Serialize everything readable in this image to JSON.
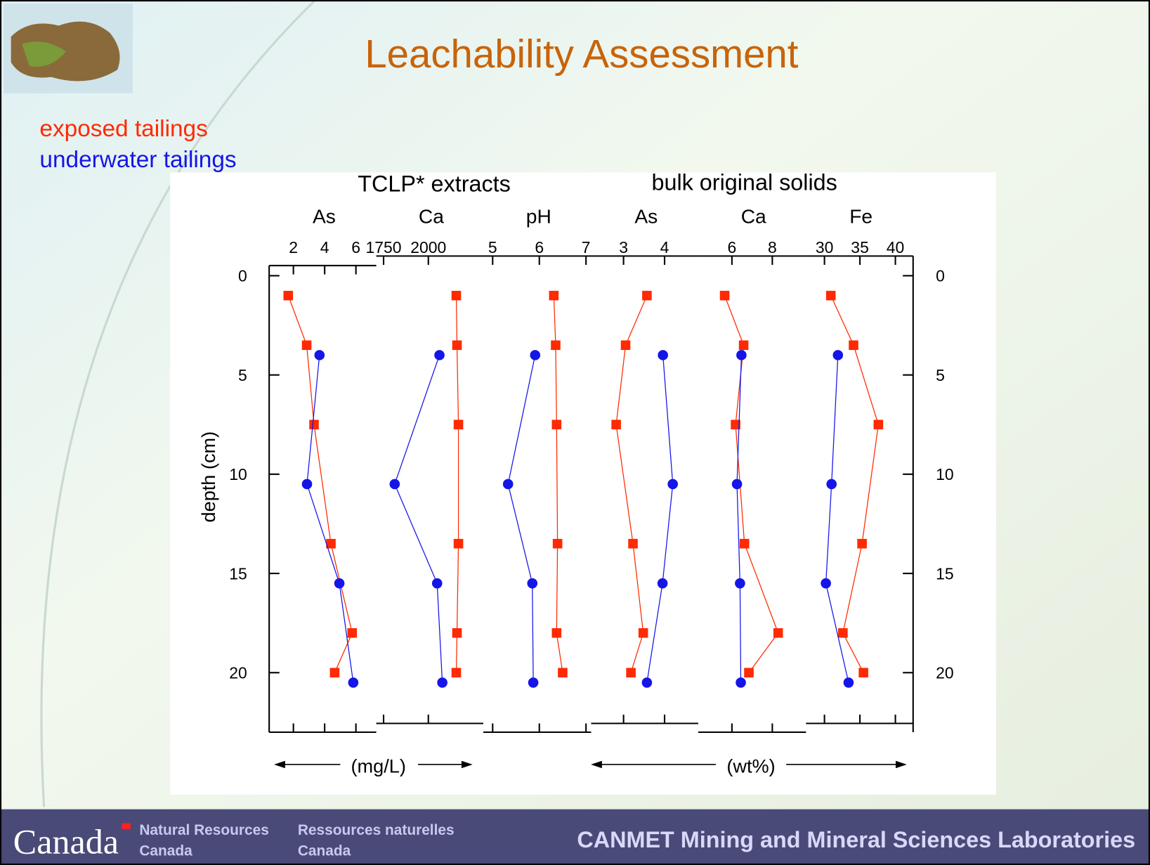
{
  "slide_title": "Leachability Assessment",
  "legend": [
    {
      "name": "exposed tailings",
      "color": "#ff2a00"
    },
    {
      "name": "underwater tailings",
      "color": "#1515e8"
    }
  ],
  "group_titles": [
    "TCLP* extracts",
    "bulk original solids"
  ],
  "unit_labels": [
    "(mg/L)",
    "(wt%)"
  ],
  "depth_axis": {
    "label": "depth (cm)",
    "ylim": [
      -0.4,
      23
    ],
    "yticks": [
      0,
      5,
      10,
      15,
      20
    ]
  },
  "chart_data": [
    {
      "type": "line",
      "title": "As",
      "xlim": [
        0.45,
        7.3
      ],
      "xticks": [
        2,
        4,
        6
      ],
      "series": [
        {
          "depth": [
            1,
            3.5,
            7.5,
            13.5,
            18,
            20
          ],
          "values": [
            1.67,
            2.85,
            3.32,
            4.4,
            5.76,
            4.64
          ]
        },
        {
          "depth": [
            4,
            10.5,
            15.5,
            20.5
          ],
          "values": [
            3.67,
            2.87,
            4.94,
            5.83
          ]
        }
      ]
    },
    {
      "type": "line",
      "title": "Ca",
      "xlim": [
        1709,
        2307
      ],
      "xticks": [
        1750,
        2000
      ],
      "series": [
        {
          "depth": [
            1,
            3.5,
            7.5,
            13.5,
            18,
            20
          ],
          "values": [
            2156,
            2160,
            2168,
            2168,
            2160,
            2156
          ]
        },
        {
          "depth": [
            4,
            10.5,
            15.5,
            20.5
          ],
          "values": [
            2062,
            1812,
            2049,
            2078
          ]
        }
      ]
    },
    {
      "type": "line",
      "title": "pH",
      "xlim": [
        4.8,
        7.11
      ],
      "xticks": [
        5,
        6,
        7
      ],
      "series": [
        {
          "depth": [
            1,
            3.5,
            7.5,
            13.5,
            18,
            20
          ],
          "values": [
            6.31,
            6.35,
            6.37,
            6.39,
            6.37,
            6.5
          ]
        },
        {
          "depth": [
            4,
            10.5,
            15.5,
            20.5
          ],
          "values": [
            5.91,
            5.33,
            5.85,
            5.87
          ]
        }
      ]
    },
    {
      "type": "line",
      "title": "As",
      "xlim": [
        2.21,
        4.82
      ],
      "xticks": [
        3,
        4
      ],
      "series": [
        {
          "depth": [
            1,
            3.5,
            7.5,
            13.5,
            18,
            20
          ],
          "values": [
            3.57,
            3.05,
            2.82,
            3.23,
            3.48,
            3.18
          ]
        },
        {
          "depth": [
            4,
            10.5,
            15.5,
            20.5
          ],
          "values": [
            3.96,
            4.2,
            3.95,
            3.57
          ]
        }
      ]
    },
    {
      "type": "line",
      "title": "Ca",
      "xlim": [
        4.33,
        9.67
      ],
      "xticks": [
        6,
        8
      ],
      "series": [
        {
          "depth": [
            1,
            3.5,
            7.5,
            13.5,
            18,
            20
          ],
          "values": [
            5.64,
            6.58,
            6.18,
            6.62,
            8.29,
            6.84
          ]
        },
        {
          "depth": [
            4,
            10.5,
            15.5,
            20.5
          ],
          "values": [
            6.47,
            6.25,
            6.4,
            6.44
          ]
        }
      ]
    },
    {
      "type": "line",
      "title": "Fe",
      "xlim": [
        27.4,
        42.5
      ],
      "xticks": [
        30,
        35,
        40
      ],
      "series": [
        {
          "depth": [
            1,
            3.5,
            7.5,
            13.5,
            18,
            20
          ],
          "values": [
            30.9,
            34.1,
            37.6,
            35.3,
            32.6,
            35.5
          ]
        },
        {
          "depth": [
            4,
            10.5,
            15.5,
            20.5
          ],
          "values": [
            31.9,
            31.0,
            30.2,
            33.4
          ]
        }
      ]
    }
  ],
  "footer": {
    "wordmark": "Canada",
    "en_1": "Natural Resources",
    "en_2": "Canada",
    "fr_1": "Ressources naturelles",
    "fr_2": "Canada",
    "lab": "CANMET Mining and Mineral Sciences Laboratories"
  }
}
